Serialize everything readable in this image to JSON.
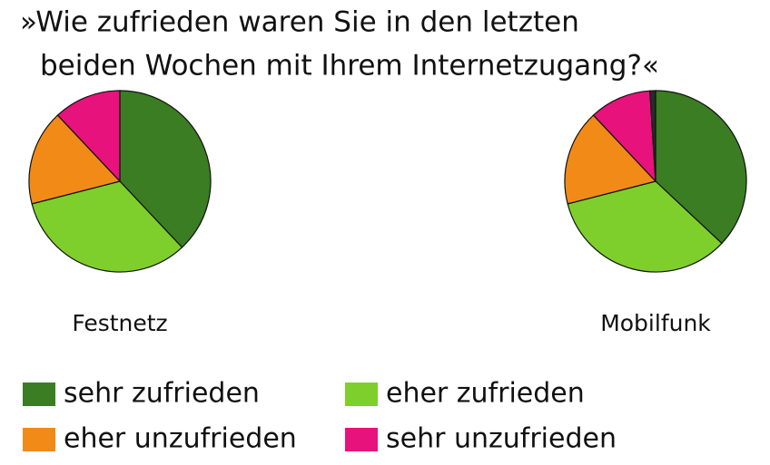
{
  "chart_data": {
    "type": "pie",
    "title": [
      "»Wie zufrieden waren Sie in den letzten",
      "beiden Wochen mit Ihrem Internetzugang?«"
    ],
    "categories": [
      "sehr zufrieden",
      "eher zufrieden",
      "eher unzufrieden",
      "sehr unzufrieden",
      null
    ],
    "colors": [
      "#3a7d22",
      "#7ecf2c",
      "#f28a18",
      "#e8127c",
      "#2a2a2a"
    ],
    "series": [
      {
        "name": "Festnetz",
        "values": [
          38,
          33,
          17,
          12,
          0
        ]
      },
      {
        "name": "Mobilfunk",
        "values": [
          37,
          34,
          17,
          11,
          1
        ]
      }
    ]
  }
}
